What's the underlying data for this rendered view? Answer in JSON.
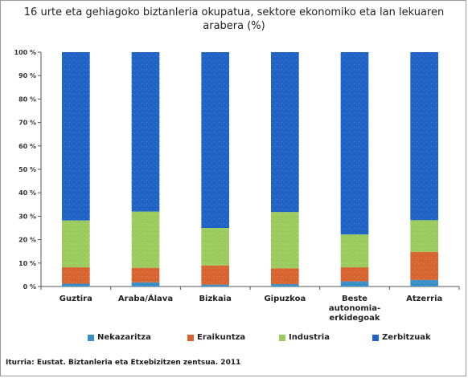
{
  "title_line1": "16 urte eta gehiagoko biztanleria okupatua, sektore ekonomiko eta lan lekuaren",
  "title_line2": "arabera (%)",
  "source": "Iturria: Eustat. Biztanleria eta Etxebizitzen zentsua. 2011",
  "chart_data": {
    "type": "bar",
    "stacked": true,
    "title": "16 urte eta gehiagoko biztanleria okupatua, sektore ekonomiko eta lan lekuaren arabera (%)",
    "categories": [
      "Guztira",
      "Araba/Álava",
      "Bizkaia",
      "Gipuzkoa",
      "Beste autonomia-erkidegoak",
      "Atzerria"
    ],
    "category_lines": [
      [
        "Guztira"
      ],
      [
        "Araba/Álava"
      ],
      [
        "Bizkaia"
      ],
      [
        "Gipuzkoa"
      ],
      [
        "Beste",
        "autonomia-",
        "erkidegoak"
      ],
      [
        "Atzerria"
      ]
    ],
    "ylim": [
      0,
      100
    ],
    "yticks": [
      "0 %",
      "10 %",
      "20 %",
      "30 %",
      "40 %",
      "50 %",
      "60 %",
      "70 %",
      "80 %",
      "90 %",
      "100 %"
    ],
    "legend_position": "bottom",
    "series": [
      {
        "name": "Nekazaritza",
        "color": "#3a8fc9",
        "values": [
          1.2,
          1.8,
          0.8,
          1.0,
          2.2,
          2.8
        ]
      },
      {
        "name": "Eraikuntza",
        "color": "#d8652f",
        "values": [
          7.0,
          6.2,
          8.2,
          6.8,
          6.0,
          12.0
        ]
      },
      {
        "name": "Industria",
        "color": "#9bcc5d",
        "values": [
          20.0,
          24.0,
          16.0,
          24.0,
          14.0,
          13.5
        ]
      },
      {
        "name": "Zerbitzuak",
        "color": "#1f63c7",
        "values": [
          71.8,
          68.0,
          75.0,
          68.2,
          77.8,
          71.7
        ]
      }
    ]
  }
}
